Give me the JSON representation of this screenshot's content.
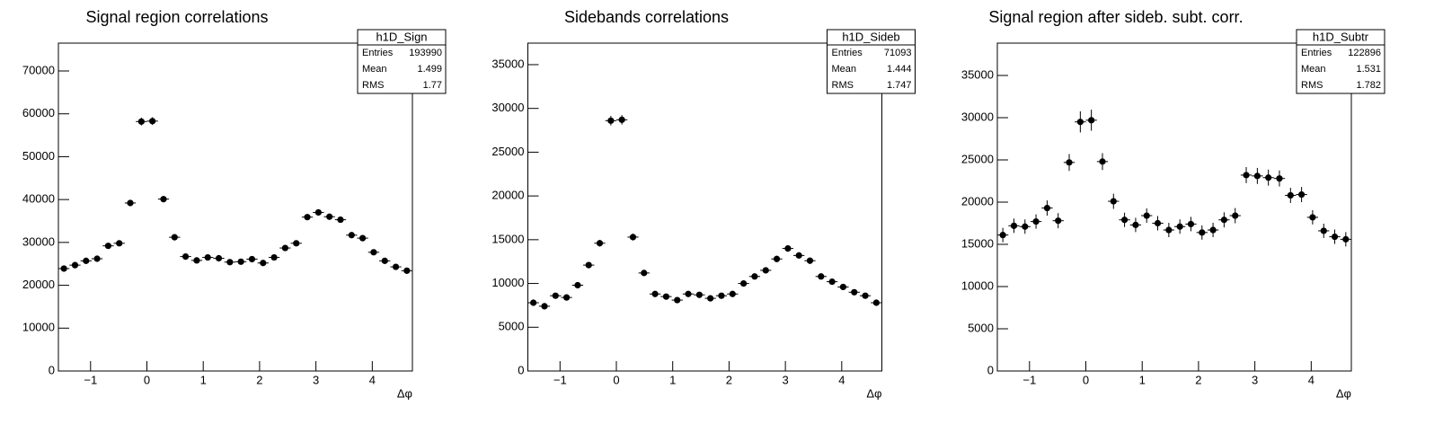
{
  "chart_data": [
    {
      "type": "errorbar",
      "title": "Signal region correlations",
      "x_label": "Δφ",
      "x": [
        -1.473,
        -1.276,
        -1.08,
        -0.884,
        -0.687,
        -0.491,
        -0.295,
        -0.098,
        0.098,
        0.295,
        0.491,
        0.687,
        0.884,
        1.08,
        1.276,
        1.473,
        1.669,
        1.865,
        2.062,
        2.258,
        2.454,
        2.651,
        2.847,
        3.044,
        3.24,
        3.436,
        3.633,
        3.829,
        4.025,
        4.222,
        4.418,
        4.614
      ],
      "values": [
        23900,
        24700,
        25700,
        26200,
        29200,
        29800,
        39200,
        58200,
        58300,
        40100,
        31200,
        26700,
        25800,
        26500,
        26300,
        25400,
        25500,
        26100,
        25200,
        26500,
        28700,
        29800,
        35900,
        37000,
        36000,
        35300,
        31700,
        31000,
        27700,
        25700,
        24300,
        23400
      ],
      "errors": [
        600,
        600,
        600,
        600,
        650,
        650,
        750,
        900,
        900,
        750,
        650,
        600,
        600,
        600,
        600,
        600,
        600,
        600,
        600,
        600,
        650,
        650,
        700,
        700,
        700,
        700,
        650,
        650,
        600,
        600,
        600,
        600
      ],
      "color": "#000000",
      "xlim": [
        -1.5708,
        4.7124
      ],
      "xticks": [
        {
          "value": -1,
          "label": "−1"
        },
        0,
        1,
        2,
        3,
        4
      ],
      "ylim": [
        0,
        76500
      ],
      "yticks": [
        0,
        10000,
        20000,
        30000,
        40000,
        50000,
        60000,
        70000
      ],
      "stats": {
        "name": "h1D_Sign",
        "labels": [
          "Entries",
          "Mean",
          "RMS"
        ],
        "values": [
          193990,
          1.499,
          1.77
        ]
      }
    },
    {
      "type": "errorbar",
      "title": "Sidebands correlations",
      "x_label": "Δφ",
      "x": [
        -1.473,
        -1.276,
        -1.08,
        -0.884,
        -0.687,
        -0.491,
        -0.295,
        -0.098,
        0.098,
        0.295,
        0.491,
        0.687,
        0.884,
        1.08,
        1.276,
        1.473,
        1.669,
        1.865,
        2.062,
        2.258,
        2.454,
        2.651,
        2.847,
        3.044,
        3.24,
        3.436,
        3.633,
        3.829,
        4.025,
        4.222,
        4.418,
        4.614
      ],
      "values": [
        7800,
        7400,
        8600,
        8400,
        9800,
        12100,
        14600,
        28600,
        28700,
        15300,
        11200,
        8800,
        8500,
        8100,
        8800,
        8700,
        8300,
        8600,
        8800,
        10000,
        10800,
        11500,
        12800,
        14000,
        13200,
        12600,
        10800,
        10200,
        9600,
        9000,
        8600,
        7800
      ],
      "errors": [
        280,
        270,
        290,
        290,
        310,
        350,
        380,
        540,
        540,
        390,
        340,
        300,
        290,
        290,
        300,
        300,
        290,
        290,
        300,
        320,
        330,
        340,
        360,
        370,
        360,
        350,
        330,
        320,
        310,
        300,
        290,
        280
      ],
      "color": "#000000",
      "xlim": [
        -1.5708,
        4.7124
      ],
      "xticks": [
        {
          "value": -1,
          "label": "−1"
        },
        0,
        1,
        2,
        3,
        4
      ],
      "ylim": [
        0,
        37460
      ],
      "yticks": [
        0,
        5000,
        10000,
        15000,
        20000,
        25000,
        30000,
        35000
      ],
      "stats": {
        "name": "h1D_Sideb",
        "labels": [
          "Entries",
          "Mean",
          "RMS"
        ],
        "values": [
          71093,
          1.444,
          1.747
        ]
      }
    },
    {
      "type": "errorbar",
      "title": "Signal region after sideb. subt. corr.",
      "x_label": "Δφ",
      "x": [
        -1.473,
        -1.276,
        -1.08,
        -0.884,
        -0.687,
        -0.491,
        -0.295,
        -0.098,
        0.098,
        0.295,
        0.491,
        0.687,
        0.884,
        1.08,
        1.276,
        1.473,
        1.669,
        1.865,
        2.062,
        2.258,
        2.454,
        2.651,
        2.847,
        3.044,
        3.24,
        3.436,
        3.633,
        3.829,
        4.025,
        4.222,
        4.418,
        4.614
      ],
      "values": [
        16100,
        17200,
        17100,
        17700,
        19300,
        17800,
        24700,
        29500,
        29700,
        24800,
        20100,
        17900,
        17300,
        18400,
        17500,
        16700,
        17100,
        17400,
        16400,
        16700,
        17900,
        18400,
        23200,
        23100,
        22900,
        22800,
        20800,
        20900,
        18200,
        16600,
        15900,
        15600
      ],
      "errors": [
        850,
        850,
        850,
        850,
        900,
        900,
        1000,
        1250,
        1250,
        1000,
        900,
        850,
        850,
        850,
        850,
        850,
        850,
        850,
        850,
        850,
        900,
        900,
        950,
        950,
        950,
        950,
        900,
        900,
        850,
        850,
        850,
        850
      ],
      "color": "#000000",
      "xlim": [
        -1.5708,
        4.7124
      ],
      "xticks": [
        {
          "value": -1,
          "label": "−1"
        },
        0,
        1,
        2,
        3,
        4
      ],
      "ylim": [
        0,
        38830
      ],
      "yticks": [
        0,
        5000,
        10000,
        15000,
        20000,
        25000,
        30000,
        35000
      ],
      "stats": {
        "name": "h1D_Subtr",
        "labels": [
          "Entries",
          "Mean",
          "RMS"
        ],
        "values": [
          122896,
          1.531,
          1.782
        ]
      }
    }
  ]
}
